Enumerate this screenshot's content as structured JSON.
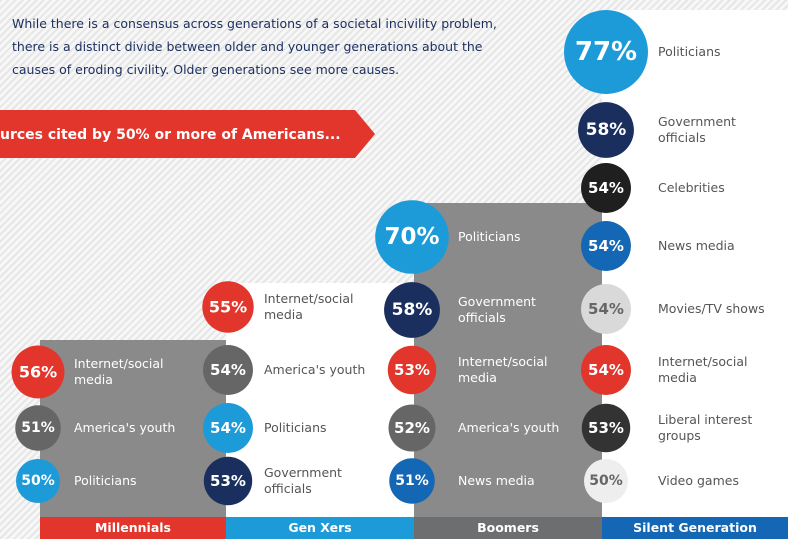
{
  "intro": [
    "While there is a consensus across generations of a societal incivility problem,",
    "there is a distinct divide between older and younger generations about the",
    "causes of eroding civility. Older generations see more causes."
  ],
  "banner": "urces cited by 50% or more of Americans...",
  "groups": [
    {
      "name": "Millennials",
      "color": "#e2352b",
      "items": [
        {
          "value": 56,
          "value_label": "56%",
          "label": "Internet/social media",
          "color": "#e2352b"
        },
        {
          "value": 51,
          "value_label": "51%",
          "label": "America's youth",
          "color": "#666666"
        },
        {
          "value": 50,
          "value_label": "50%",
          "label": "Politicians",
          "color": "#1d9ad8"
        }
      ]
    },
    {
      "name": "Gen Xers",
      "color": "#1d9ad8",
      "items": [
        {
          "value": 55,
          "value_label": "55%",
          "label": "Internet/social media",
          "color": "#e2352b"
        },
        {
          "value": 54,
          "value_label": "54%",
          "label": "America's youth",
          "color": "#666666"
        },
        {
          "value": 54,
          "value_label": "54%",
          "label": "Politicians",
          "color": "#1d9ad8"
        },
        {
          "value": 53,
          "value_label": "53%",
          "label": "Government officials",
          "color": "#1a2f5e"
        }
      ]
    },
    {
      "name": "Boomers",
      "color": "#6d6e70",
      "items": [
        {
          "value": 70,
          "value_label": "70%",
          "label": "Politicians",
          "color": "#1d9ad8"
        },
        {
          "value": 58,
          "value_label": "58%",
          "label": "Government officials",
          "color": "#1a2f5e"
        },
        {
          "value": 53,
          "value_label": "53%",
          "label": "Internet/social media",
          "color": "#e2352b"
        },
        {
          "value": 52,
          "value_label": "52%",
          "label": "America's youth",
          "color": "#666666"
        },
        {
          "value": 51,
          "value_label": "51%",
          "label": "News media",
          "color": "#1467b4"
        }
      ]
    },
    {
      "name": "Silent Generation",
      "color": "#1467b4",
      "items": [
        {
          "value": 77,
          "value_label": "77%",
          "label": "Politicians",
          "color": "#1d9ad8"
        },
        {
          "value": 58,
          "value_label": "58%",
          "label": "Government officials",
          "color": "#1a2f5e"
        },
        {
          "value": 54,
          "value_label": "54%",
          "label": "Celebrities",
          "color": "#1f1f1f"
        },
        {
          "value": 54,
          "value_label": "54%",
          "label": "News media",
          "color": "#1467b4"
        },
        {
          "value": 54,
          "value_label": "54%",
          "label": "Movies/TV shows",
          "color": "#d9d9d9"
        },
        {
          "value": 54,
          "value_label": "54%",
          "label": "Internet/social media",
          "color": "#e2352b"
        },
        {
          "value": 53,
          "value_label": "53%",
          "label": "Liberal interest groups",
          "color": "#333333"
        },
        {
          "value": 50,
          "value_label": "50%",
          "label": "Video games",
          "color": "#eeeeee"
        }
      ]
    }
  ]
}
